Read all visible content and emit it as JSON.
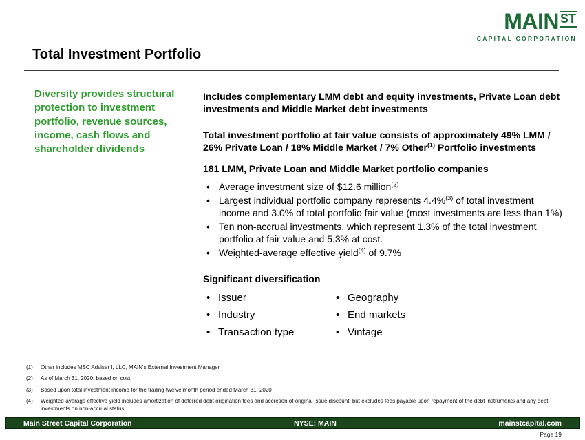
{
  "colors": {
    "logo_green": "#1e6b38",
    "accent_green": "#2f9e2f",
    "footer_green": "#1b451b"
  },
  "ui": {
    "bullet": "•"
  },
  "logo": {
    "wordmark": "MAIN",
    "superscript": "ST",
    "subtitle": "CAPITAL CORPORATION"
  },
  "header": {
    "title": "Total Investment Portfolio"
  },
  "sidebar": {
    "headline": "Diversity provides structural protection to investment portfolio, revenue sources, income, cash flows and shareholder dividends"
  },
  "content": {
    "intro": "Includes complementary LMM debt and equity investments, Private Loan debt investments and Middle Market debt investments",
    "mix": {
      "pre": "Total investment portfolio at fair value consists of approximately 49% LMM / 26% Private Loan / 18% Middle Market / 7% Other",
      "sup": "(1)",
      "post": " Portfolio investments"
    },
    "companies_heading": "181 LMM, Private Loan and Middle Market portfolio companies",
    "bullets": [
      {
        "pre": "Average investment size of $12.6 million",
        "sup": "(2)",
        "post": ""
      },
      {
        "pre": "Largest individual portfolio company represents 4.4%",
        "sup": "(3)",
        "post": " of total investment income and 3.0% of total portfolio fair value (most investments are less than 1%)"
      },
      {
        "pre": "Ten non-accrual investments, which represent 1.3% of the total investment portfolio at fair value and 5.3% at cost.",
        "sup": "",
        "post": ""
      },
      {
        "pre": "Weighted-average effective yield",
        "sup": "(4)",
        "post": " of 9.7%"
      }
    ],
    "diversification_heading": "Significant diversification",
    "diversification_col1": [
      "Issuer",
      "Industry",
      "Transaction type"
    ],
    "diversification_col2": [
      "Geography",
      "End markets",
      "Vintage"
    ]
  },
  "footnotes": [
    {
      "num": "(1)",
      "text": "Other includes MSC Adviser I, LLC, MAIN's External Investment Manager"
    },
    {
      "num": "(2)",
      "text": "As of March 31, 2020; based on cost"
    },
    {
      "num": "(3)",
      "text": "Based upon total investment income for the trailing twelve month period ended March 31, 2020"
    },
    {
      "num": "(4)",
      "text": "Weighted-average effective yield includes amortization of deferred debt origination fees and accretion of original issue discount, but excludes fees payable upon repayment of the debt instruments and any debt investments on non-accrual status"
    }
  ],
  "footer": {
    "company": "Main Street Capital Corporation",
    "ticker": "NYSE: MAIN",
    "website": "mainstcapital.com",
    "page": "Page 19"
  }
}
